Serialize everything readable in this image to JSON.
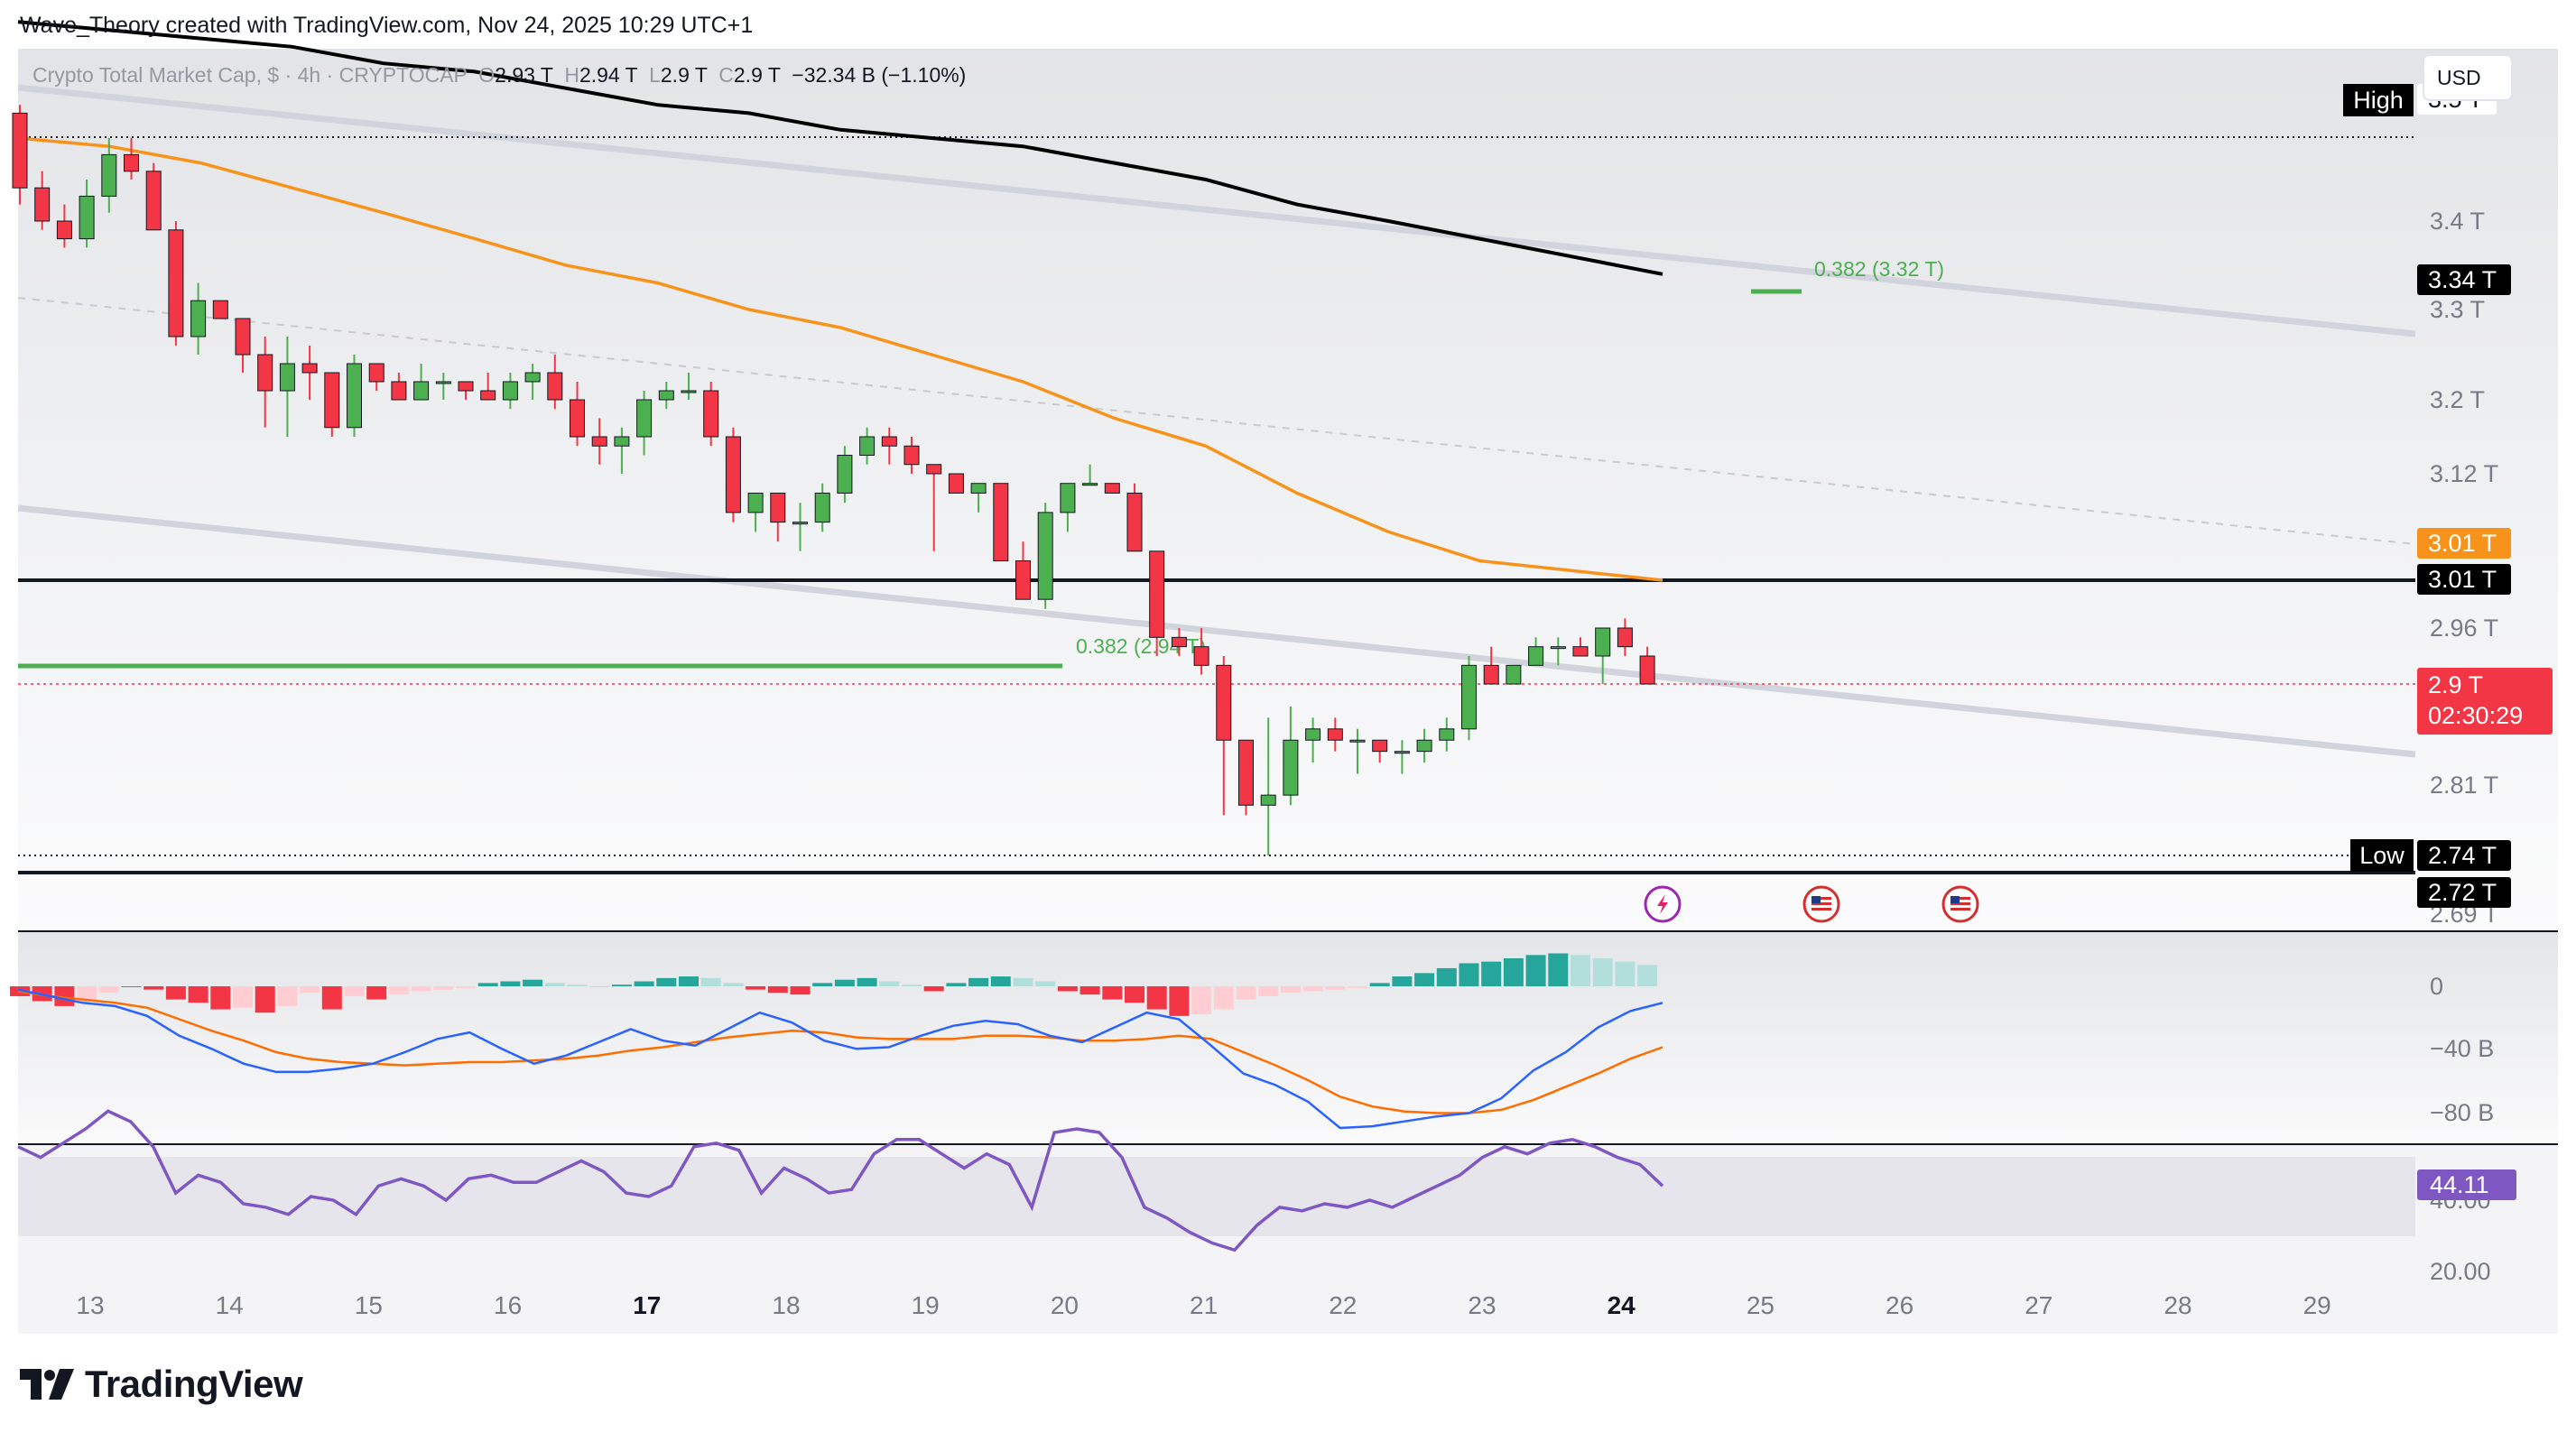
{
  "header": {
    "attribution": "Wave_Theory created with TradingView.com, Nov 24, 2025 10:29 UTC+1"
  },
  "legend": {
    "symbol_text": "Crypto Total Market Cap, $ · 4h · CRYPTOCAP",
    "o_label": "O",
    "o_value": "2.93 T",
    "h_label": "H",
    "h_value": "2.94 T",
    "l_label": "L",
    "l_value": "2.9 T",
    "c_label": "C",
    "c_value": "2.9 T",
    "change": "−32.34 B (−1.10%)"
  },
  "currency": "USD",
  "brand": {
    "name": "TradingView"
  },
  "colors": {
    "up": "#26a69a",
    "up_candle": "#4caf50",
    "down": "#f23645",
    "ema_orange": "#f7931a",
    "ma_black": "#000000",
    "channel": "#d1d4dc",
    "fib_green": "#4caf50",
    "macd_line": "#2962ff",
    "signal_line": "#ff6d00",
    "rsi_line": "#7e57c2"
  },
  "chart_data": {
    "type": "candlestick",
    "timeframe": "4h",
    "price_unit": "T",
    "price_axis": {
      "ticks": [
        "3.5 T",
        "3.4 T",
        "3.3 T",
        "3.2 T",
        "3.12 T",
        "3.01 T",
        "2.96 T",
        "2.9 T",
        "2.81 T",
        "2.74 T",
        "2.72 T",
        "2.69 T"
      ],
      "range": [
        2.66,
        3.58
      ]
    },
    "x_axis": {
      "labels": [
        "13",
        "14",
        "15",
        "16",
        "17",
        "18",
        "19",
        "20",
        "21",
        "22",
        "23",
        "24",
        "25",
        "26",
        "27",
        "28",
        "29"
      ],
      "bold": [
        "17",
        "24"
      ]
    },
    "candles": [
      [
        3.53,
        3.54,
        3.42,
        3.44
      ],
      [
        3.44,
        3.46,
        3.39,
        3.4
      ],
      [
        3.4,
        3.42,
        3.37,
        3.38
      ],
      [
        3.38,
        3.45,
        3.37,
        3.43
      ],
      [
        3.43,
        3.5,
        3.41,
        3.48
      ],
      [
        3.48,
        3.5,
        3.45,
        3.46
      ],
      [
        3.46,
        3.47,
        3.39,
        3.39
      ],
      [
        3.39,
        3.4,
        3.26,
        3.27
      ],
      [
        3.27,
        3.33,
        3.25,
        3.31
      ],
      [
        3.31,
        3.31,
        3.29,
        3.29
      ],
      [
        3.29,
        3.29,
        3.23,
        3.25
      ],
      [
        3.25,
        3.27,
        3.17,
        3.21
      ],
      [
        3.21,
        3.27,
        3.16,
        3.24
      ],
      [
        3.24,
        3.26,
        3.2,
        3.23
      ],
      [
        3.23,
        3.23,
        3.16,
        3.17
      ],
      [
        3.17,
        3.25,
        3.16,
        3.24
      ],
      [
        3.24,
        3.24,
        3.21,
        3.22
      ],
      [
        3.22,
        3.23,
        3.2,
        3.2
      ],
      [
        3.2,
        3.24,
        3.2,
        3.22
      ],
      [
        3.22,
        3.23,
        3.2,
        3.22
      ],
      [
        3.22,
        3.22,
        3.2,
        3.21
      ],
      [
        3.21,
        3.23,
        3.2,
        3.2
      ],
      [
        3.2,
        3.23,
        3.19,
        3.22
      ],
      [
        3.22,
        3.24,
        3.2,
        3.23
      ],
      [
        3.23,
        3.25,
        3.19,
        3.2
      ],
      [
        3.2,
        3.22,
        3.15,
        3.16
      ],
      [
        3.16,
        3.18,
        3.13,
        3.15
      ],
      [
        3.15,
        3.17,
        3.12,
        3.16
      ],
      [
        3.16,
        3.21,
        3.14,
        3.2
      ],
      [
        3.2,
        3.22,
        3.19,
        3.21
      ],
      [
        3.21,
        3.23,
        3.2,
        3.21
      ],
      [
        3.21,
        3.22,
        3.15,
        3.16
      ],
      [
        3.16,
        3.17,
        3.07,
        3.08
      ],
      [
        3.08,
        3.1,
        3.06,
        3.1
      ],
      [
        3.1,
        3.1,
        3.05,
        3.07
      ],
      [
        3.07,
        3.09,
        3.04,
        3.07
      ],
      [
        3.07,
        3.11,
        3.06,
        3.1
      ],
      [
        3.1,
        3.15,
        3.09,
        3.14
      ],
      [
        3.14,
        3.17,
        3.13,
        3.16
      ],
      [
        3.16,
        3.17,
        3.13,
        3.15
      ],
      [
        3.15,
        3.16,
        3.12,
        3.13
      ],
      [
        3.13,
        3.13,
        3.04,
        3.12
      ],
      [
        3.12,
        3.12,
        3.1,
        3.1
      ],
      [
        3.1,
        3.11,
        3.08,
        3.11
      ],
      [
        3.11,
        3.11,
        3.03,
        3.03
      ],
      [
        3.03,
        3.05,
        2.99,
        2.99
      ],
      [
        2.99,
        3.09,
        2.98,
        3.08
      ],
      [
        3.08,
        3.11,
        3.06,
        3.11
      ],
      [
        3.11,
        3.13,
        3.11,
        3.11
      ],
      [
        3.11,
        3.11,
        3.1,
        3.1
      ],
      [
        3.1,
        3.11,
        3.04,
        3.04
      ],
      [
        3.04,
        3.04,
        2.93,
        2.95
      ],
      [
        2.95,
        2.96,
        2.93,
        2.94
      ],
      [
        2.94,
        2.96,
        2.91,
        2.92
      ],
      [
        2.92,
        2.93,
        2.78,
        2.85
      ],
      [
        2.85,
        2.85,
        2.78,
        2.79
      ],
      [
        2.79,
        2.87,
        2.74,
        2.8
      ],
      [
        2.8,
        2.88,
        2.79,
        2.85
      ],
      [
        2.85,
        2.87,
        2.83,
        2.86
      ],
      [
        2.86,
        2.87,
        2.84,
        2.85
      ],
      [
        2.85,
        2.86,
        2.82,
        2.85
      ],
      [
        2.85,
        2.85,
        2.83,
        2.84
      ],
      [
        2.84,
        2.85,
        2.82,
        2.84
      ],
      [
        2.84,
        2.86,
        2.83,
        2.85
      ],
      [
        2.85,
        2.87,
        2.84,
        2.86
      ],
      [
        2.86,
        2.93,
        2.85,
        2.92
      ],
      [
        2.92,
        2.94,
        2.9,
        2.9
      ],
      [
        2.9,
        2.92,
        2.9,
        2.92
      ],
      [
        2.92,
        2.95,
        2.92,
        2.94
      ],
      [
        2.94,
        2.95,
        2.92,
        2.94
      ],
      [
        2.94,
        2.95,
        2.93,
        2.93
      ],
      [
        2.93,
        2.96,
        2.9,
        2.96
      ],
      [
        2.96,
        2.97,
        2.93,
        2.94
      ],
      [
        2.93,
        2.94,
        2.9,
        2.9
      ]
    ],
    "moving_averages": [
      {
        "color": "#f7931a",
        "values": [
          3.5,
          3.49,
          3.47,
          3.44,
          3.41,
          3.38,
          3.35,
          3.33,
          3.3,
          3.28,
          3.25,
          3.22,
          3.18,
          3.15,
          3.1,
          3.06,
          3.03,
          3.02,
          3.01
        ]
      },
      {
        "color": "#000000",
        "values": [
          3.64,
          3.63,
          3.62,
          3.61,
          3.59,
          3.58,
          3.56,
          3.54,
          3.53,
          3.51,
          3.5,
          3.49,
          3.47,
          3.45,
          3.42,
          3.4,
          3.38,
          3.36,
          3.34
        ]
      }
    ],
    "lines": {
      "resistance": 3.01,
      "support": 2.72,
      "current_price": 2.9,
      "high": 3.5,
      "low": 2.74,
      "fib_0382_lower": 2.94,
      "fib_0382_upper": 3.32
    },
    "price_labels": {
      "high": "High",
      "high_value": "3.5 T",
      "ma_black": "3.34 T",
      "ema_orange": "3.01 T",
      "resistance": "3.01 T",
      "current": "2.9 T",
      "countdown": "02:30:29",
      "low": "Low",
      "low_value": "2.74 T",
      "support": "2.72 T"
    },
    "annotations": {
      "fib_upper": "0.382 (3.32 T)",
      "fib_lower": "0.382 (2.94 T)"
    },
    "macd": {
      "axis_ticks": [
        "0",
        "−40 B",
        "−80 B"
      ],
      "histogram": [
        -6,
        -9,
        -12,
        -9,
        -4,
        0,
        -2,
        -8,
        -10,
        -14,
        -13,
        -16,
        -12,
        -4,
        -14,
        -6,
        -8,
        -5,
        -3,
        -2,
        -1,
        2,
        3,
        4,
        2,
        1,
        0,
        1,
        3,
        5,
        6,
        5,
        2,
        -2,
        -4,
        -5,
        2,
        4,
        5,
        3,
        1,
        -3,
        2,
        5,
        6,
        5,
        3,
        -3,
        -5,
        -8,
        -10,
        -14,
        -18,
        -17,
        -14,
        -8,
        -6,
        -4,
        -3,
        -2,
        -1,
        2,
        6,
        8,
        11,
        14,
        15,
        17,
        19,
        20,
        19,
        17,
        15,
        13
      ],
      "macd_line": [
        -2,
        -6,
        -10,
        -12,
        -18,
        -30,
        -38,
        -47,
        -52,
        -52,
        -50,
        -47,
        -40,
        -32,
        -28,
        -38,
        -47,
        -42,
        -34,
        -26,
        -33,
        -36,
        -26,
        -16,
        -22,
        -33,
        -38,
        -37,
        -30,
        -24,
        -21,
        -23,
        -30,
        -34,
        -25,
        -16,
        -20,
        -36,
        -53,
        -60,
        -70,
        -86,
        -85,
        -82,
        -79,
        -77,
        -68,
        -51,
        -40,
        -25,
        -15,
        -10
      ],
      "signal_line": [
        -3,
        -6,
        -8,
        -10,
        -13,
        -20,
        -27,
        -33,
        -40,
        -44,
        -46,
        -47,
        -48,
        -47,
        -46,
        -46,
        -45,
        -44,
        -42,
        -39,
        -37,
        -34,
        -31,
        -29,
        -27,
        -28,
        -31,
        -32,
        -32,
        -32,
        -30,
        -30,
        -31,
        -33,
        -33,
        -32,
        -30,
        -32,
        -40,
        -48,
        -57,
        -67,
        -73,
        -76,
        -77,
        -77,
        -75,
        -69,
        -61,
        -53,
        -44,
        -37
      ]
    },
    "rsi": {
      "value": "44.11",
      "axis_ticks": [
        "40.00",
        "20.00"
      ],
      "values": [
        55,
        52,
        56,
        60,
        65,
        62,
        55,
        42,
        47,
        45,
        39,
        38,
        36,
        41,
        40,
        36,
        44,
        46,
        44,
        40,
        46,
        47,
        45,
        45,
        48,
        51,
        48,
        42,
        41,
        44,
        55,
        56,
        54,
        42,
        49,
        46,
        42,
        43,
        53,
        57,
        57,
        53,
        49,
        53,
        50,
        38,
        59,
        60,
        59,
        52,
        38,
        35,
        31,
        28,
        26,
        33,
        38,
        37,
        39,
        38,
        40,
        38,
        41,
        44,
        47,
        52,
        55,
        53,
        56,
        57,
        55,
        52,
        50,
        44
      ]
    }
  }
}
